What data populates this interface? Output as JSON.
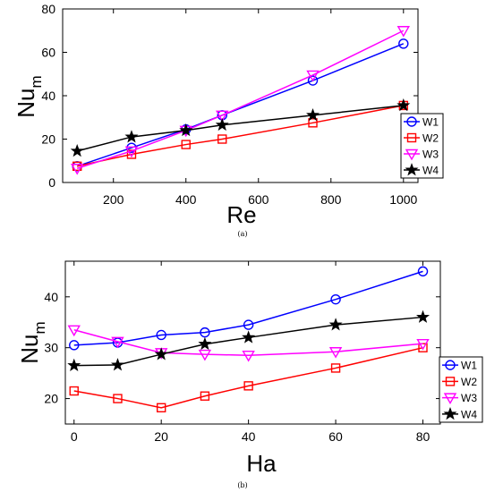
{
  "chart_data": [
    {
      "type": "line",
      "panel_label": "(a)",
      "xlabel": "Re",
      "ylabel_main": "Nu",
      "ylabel_sub": "m",
      "xlim": [
        60,
        1040
      ],
      "ylim": [
        0,
        80
      ],
      "xticks": [
        200,
        400,
        600,
        800,
        1000
      ],
      "yticks": [
        0,
        20,
        40,
        60,
        80
      ],
      "legend": "bottom-right",
      "series": [
        {
          "name": "W1",
          "color": "#0000ff",
          "marker": "circle",
          "x": [
            100,
            250,
            400,
            500,
            750,
            1000
          ],
          "y": [
            7.5,
            16,
            24.5,
            31,
            47,
            64
          ]
        },
        {
          "name": "W2",
          "color": "#ff0000",
          "marker": "square",
          "x": [
            100,
            250,
            400,
            500,
            750,
            1000
          ],
          "y": [
            7.5,
            13,
            17.5,
            20,
            27.5,
            35.5
          ]
        },
        {
          "name": "W3",
          "color": "#ff00ff",
          "marker": "triangle-down",
          "x": [
            100,
            250,
            400,
            500,
            750,
            1000
          ],
          "y": [
            6.5,
            14.5,
            24,
            31,
            49.5,
            70
          ]
        },
        {
          "name": "W4",
          "color": "#000000",
          "marker": "star",
          "x": [
            100,
            250,
            400,
            500,
            750,
            1000
          ],
          "y": [
            14.5,
            21,
            24,
            26.5,
            31,
            35.5
          ]
        }
      ]
    },
    {
      "type": "line",
      "panel_label": "(b)",
      "xlabel": "Ha",
      "ylabel_main": "Nu",
      "ylabel_sub": "m",
      "xlim": [
        -2,
        84
      ],
      "ylim": [
        15,
        47
      ],
      "xticks": [
        0,
        20,
        40,
        60,
        80
      ],
      "yticks": [
        20,
        30,
        40
      ],
      "legend": "bottom-right",
      "series": [
        {
          "name": "W1",
          "color": "#0000ff",
          "marker": "circle",
          "x": [
            0,
            10,
            20,
            30,
            40,
            60,
            80
          ],
          "y": [
            30.5,
            31,
            32.5,
            33,
            34.5,
            39.5,
            45
          ]
        },
        {
          "name": "W2",
          "color": "#ff0000",
          "marker": "square",
          "x": [
            0,
            10,
            20,
            30,
            40,
            60,
            80
          ],
          "y": [
            21.5,
            20,
            18.2,
            20.5,
            22.5,
            26,
            30
          ]
        },
        {
          "name": "W3",
          "color": "#ff00ff",
          "marker": "triangle-down",
          "x": [
            0,
            10,
            20,
            30,
            40,
            60,
            80
          ],
          "y": [
            33.5,
            31.2,
            29,
            28.7,
            28.5,
            29.2,
            30.8
          ]
        },
        {
          "name": "W4",
          "color": "#000000",
          "marker": "star",
          "x": [
            0,
            10,
            20,
            30,
            40,
            60,
            80
          ],
          "y": [
            26.5,
            26.6,
            28.7,
            30.7,
            32,
            34.5,
            36
          ]
        }
      ]
    }
  ]
}
